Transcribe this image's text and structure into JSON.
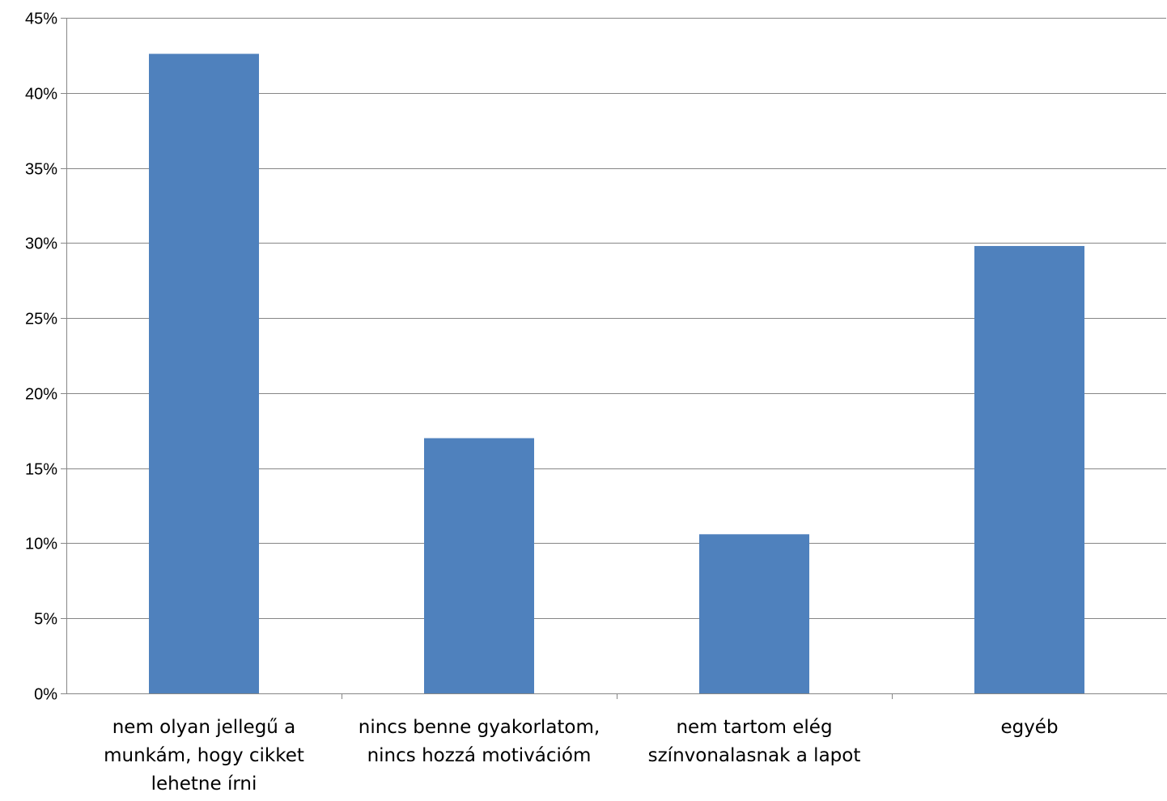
{
  "chart_data": {
    "type": "bar",
    "categories": [
      [
        "nem olyan jellegű a",
        "munkám, hogy cikket",
        "lehetne írni"
      ],
      [
        "nincs benne gyakorlatom,",
        "nincs hozzá motivációm"
      ],
      [
        "nem tartom elég",
        "színvonalasnak a lapot"
      ],
      [
        "egyéb"
      ]
    ],
    "values": [
      42.6,
      17.0,
      10.6,
      29.8
    ],
    "ylim": [
      0,
      45
    ],
    "yticks": [
      0,
      5,
      10,
      15,
      20,
      25,
      30,
      35,
      40,
      45
    ],
    "ytick_labels": [
      "0%",
      "5%",
      "10%",
      "15%",
      "20%",
      "25%",
      "30%",
      "35%",
      "40%",
      "45%"
    ],
    "title": "",
    "xlabel": "",
    "ylabel": "",
    "grid": true,
    "legend": "none",
    "bar_color": "#4F81BD",
    "grid_color": "#868686",
    "axis_color": "#868686"
  }
}
